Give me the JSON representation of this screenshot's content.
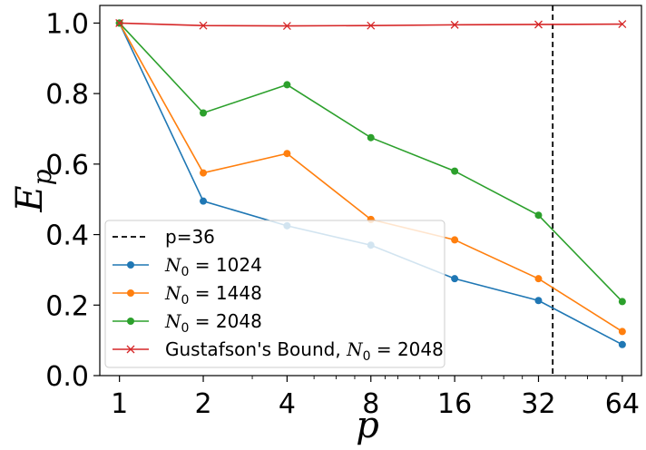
{
  "chart_data": {
    "type": "line",
    "xlabel": "p",
    "ylabel_main": "E",
    "ylabel_sub": "p",
    "x_scale": "log2",
    "x": [
      1,
      2,
      4,
      8,
      16,
      32,
      64
    ],
    "xticks": [
      "1",
      "2",
      "4",
      "8",
      "16",
      "32",
      "64"
    ],
    "yticks": [
      "0.0",
      "0.2",
      "0.4",
      "0.6",
      "0.8",
      "1.0"
    ],
    "ylim": [
      0.0,
      1.05
    ],
    "xlim": [
      0.85,
      75
    ],
    "vline": {
      "x": 36,
      "label": "p=36",
      "color": "#000000",
      "style": "dashed"
    },
    "series": [
      {
        "name": "N₀ = 1024",
        "name_var": "N",
        "name_sub": "0",
        "name_rest": " = 1024",
        "color": "#1f77b4",
        "marker": "circle",
        "values": [
          1.0,
          0.495,
          0.425,
          0.37,
          0.275,
          0.213,
          0.088
        ]
      },
      {
        "name": "N₀ = 1448",
        "name_var": "N",
        "name_sub": "0",
        "name_rest": " = 1448",
        "color": "#ff7f0e",
        "marker": "circle",
        "values": [
          1.0,
          0.575,
          0.63,
          0.443,
          0.385,
          0.275,
          0.125
        ]
      },
      {
        "name": "N₀ = 2048",
        "name_var": "N",
        "name_sub": "0",
        "name_rest": " = 2048",
        "color": "#2ca02c",
        "marker": "circle",
        "values": [
          1.0,
          0.745,
          0.825,
          0.675,
          0.58,
          0.455,
          0.21
        ]
      },
      {
        "name": "Gustafson's Bound, N₀ = 2048",
        "name_prefix": "Gustafson's Bound, ",
        "name_var": "N",
        "name_sub": "0",
        "name_rest": " = 2048",
        "color": "#d62728",
        "marker": "x",
        "values": [
          1.0,
          0.993,
          0.992,
          0.993,
          0.995,
          0.996,
          0.997
        ]
      }
    ],
    "legend_position": "lower-left",
    "grid": false
  }
}
